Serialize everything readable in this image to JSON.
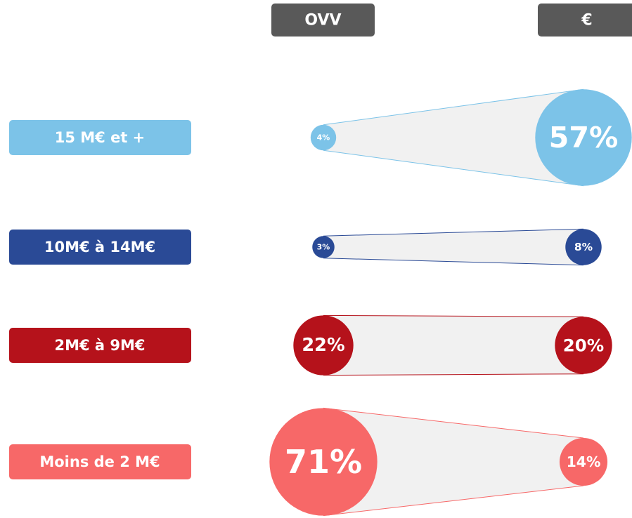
{
  "chart_data": {
    "type": "bubble-compare",
    "categories": [
      "15 M€ et +",
      "10M€ à 14M€",
      "2M€ à 9M€",
      "Moins de  2 M€"
    ],
    "colors": [
      "#7cc3e8",
      "#2a4a96",
      "#b5121b",
      "#f76868"
    ],
    "series": [
      {
        "name": "OVV",
        "color": "#595959",
        "values": [
          4,
          3,
          22,
          71
        ],
        "value_labels": [
          "4%",
          "3%",
          "22%",
          "71%"
        ]
      },
      {
        "name": "€",
        "color": "#595959",
        "values": [
          57,
          8,
          20,
          14
        ],
        "value_labels": [
          "57%",
          "8%",
          "20%",
          "14%"
        ]
      }
    ]
  }
}
